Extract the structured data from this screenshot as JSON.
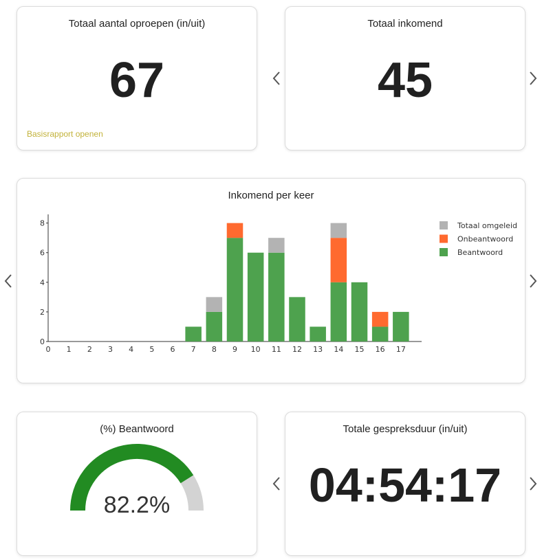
{
  "cards": {
    "total_calls": {
      "title": "Totaal aantal oproepen (in/uit)",
      "value": "67",
      "link": "Basisrapport openen"
    },
    "total_incoming": {
      "title": "Totaal inkomend",
      "value": "45"
    },
    "incoming_chart": {
      "title": "Inkomend per keer"
    },
    "answered_pct": {
      "title": "(%) Beantwoord",
      "value": "82.2%",
      "fraction": 0.822
    },
    "total_duration": {
      "title": "Totale gespreksduur (in/uit)",
      "value": "04:54:17"
    }
  },
  "icons": {
    "prev": "chevron-left-icon",
    "next": "chevron-right-icon"
  },
  "colors": {
    "answered": "#4ea24e",
    "unanswered": "#ff6a2f",
    "forwarded": "#b3b3b3",
    "gauge_fill": "#228b22",
    "gauge_rest": "#d3d3d3",
    "link": "#c2b23a"
  },
  "chart_data": {
    "type": "bar",
    "stacked": true,
    "categories": [
      "0",
      "1",
      "2",
      "3",
      "4",
      "5",
      "6",
      "7",
      "8",
      "9",
      "10",
      "11",
      "12",
      "13",
      "14",
      "15",
      "16",
      "17"
    ],
    "series": [
      {
        "name": "Beantwoord",
        "color": "#4ea24e",
        "values": [
          0,
          0,
          0,
          0,
          0,
          0,
          0,
          1,
          2,
          7,
          6,
          6,
          3,
          1,
          4,
          4,
          1,
          2
        ]
      },
      {
        "name": "Onbeantwoord",
        "color": "#ff6a2f",
        "values": [
          0,
          0,
          0,
          0,
          0,
          0,
          0,
          0,
          0,
          1,
          0,
          0,
          0,
          0,
          3,
          0,
          1,
          0
        ]
      },
      {
        "name": "Totaal omgeleid",
        "color": "#b3b3b3",
        "values": [
          0,
          0,
          0,
          0,
          0,
          0,
          0,
          0,
          1,
          0,
          0,
          1,
          0,
          0,
          1,
          0,
          0,
          0
        ]
      }
    ],
    "legend_order": [
      "Totaal omgeleid",
      "Onbeantwoord",
      "Beantwoord"
    ],
    "yticks": [
      "0",
      "2",
      "4",
      "6",
      "8"
    ],
    "ylim": [
      0,
      8.4
    ],
    "legend_position": "right"
  }
}
